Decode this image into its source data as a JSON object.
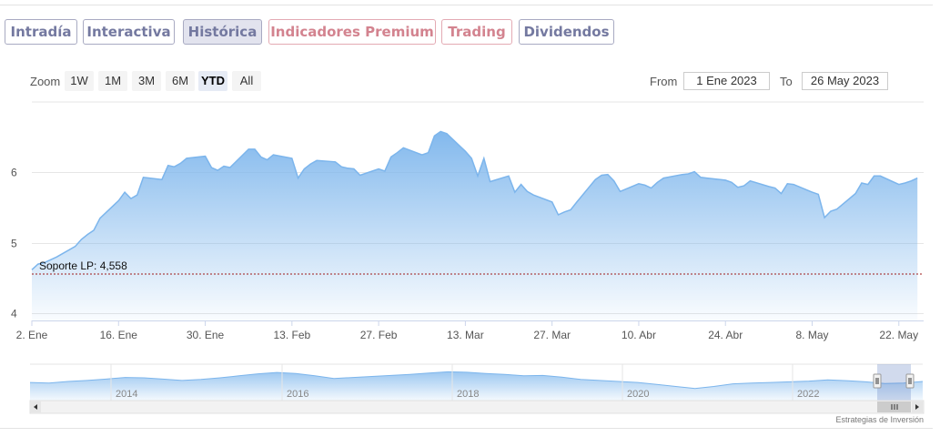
{
  "tabs": [
    {
      "label": "Intradía",
      "style": "blue",
      "active": false
    },
    {
      "label": "Interactiva",
      "style": "blue",
      "active": false
    },
    {
      "label": "Histórica",
      "style": "blue",
      "active": true
    },
    {
      "label": "Indicadores Premium",
      "style": "pink",
      "active": false
    },
    {
      "label": "Trading",
      "style": "pink",
      "active": false
    },
    {
      "label": "Dividendos",
      "style": "blue",
      "active": false
    }
  ],
  "range_selector": {
    "zoom_label": "Zoom",
    "buttons": [
      "1W",
      "1M",
      "3M",
      "6M",
      "YTD",
      "All"
    ],
    "selected": "YTD",
    "from_label": "From",
    "from_value": "1 Ene 2023",
    "to_label": "To",
    "to_value": "26 May 2023"
  },
  "chart_data": {
    "type": "area",
    "x_start": "2023-01-02",
    "x_end": "2023-05-26",
    "x_ticks": [
      {
        "label": "2. Ene",
        "date": "2023-01-02"
      },
      {
        "label": "16. Ene",
        "date": "2023-01-16"
      },
      {
        "label": "30. Ene",
        "date": "2023-01-30"
      },
      {
        "label": "13. Feb",
        "date": "2023-02-13"
      },
      {
        "label": "27. Feb",
        "date": "2023-02-27"
      },
      {
        "label": "13. Mar",
        "date": "2023-03-13"
      },
      {
        "label": "27. Mar",
        "date": "2023-03-27"
      },
      {
        "label": "10. Abr",
        "date": "2023-04-10"
      },
      {
        "label": "24. Abr",
        "date": "2023-04-24"
      },
      {
        "label": "8. May",
        "date": "2023-05-08"
      },
      {
        "label": "22. May",
        "date": "2023-05-22"
      }
    ],
    "y_ticks": [
      4,
      5,
      6
    ],
    "ylim": [
      3.9,
      7.0
    ],
    "series": [
      {
        "values": [
          [
            "2023-01-02",
            4.62
          ],
          [
            "2023-01-03",
            4.7
          ],
          [
            "2023-01-04",
            4.72
          ],
          [
            "2023-01-05",
            4.76
          ],
          [
            "2023-01-06",
            4.8
          ],
          [
            "2023-01-09",
            4.95
          ],
          [
            "2023-01-10",
            5.05
          ],
          [
            "2023-01-11",
            5.12
          ],
          [
            "2023-01-12",
            5.18
          ],
          [
            "2023-01-13",
            5.35
          ],
          [
            "2023-01-16",
            5.6
          ],
          [
            "2023-01-17",
            5.72
          ],
          [
            "2023-01-18",
            5.63
          ],
          [
            "2023-01-19",
            5.68
          ],
          [
            "2023-01-20",
            5.93
          ],
          [
            "2023-01-23",
            5.9
          ],
          [
            "2023-01-24",
            6.1
          ],
          [
            "2023-01-25",
            6.08
          ],
          [
            "2023-01-26",
            6.13
          ],
          [
            "2023-01-27",
            6.2
          ],
          [
            "2023-01-30",
            6.23
          ],
          [
            "2023-01-31",
            6.07
          ],
          [
            "2023-02-01",
            6.03
          ],
          [
            "2023-02-02",
            6.09
          ],
          [
            "2023-02-03",
            6.07
          ],
          [
            "2023-02-06",
            6.33
          ],
          [
            "2023-02-07",
            6.33
          ],
          [
            "2023-02-08",
            6.22
          ],
          [
            "2023-02-09",
            6.18
          ],
          [
            "2023-02-10",
            6.25
          ],
          [
            "2023-02-13",
            6.2
          ],
          [
            "2023-02-14",
            5.92
          ],
          [
            "2023-02-15",
            6.05
          ],
          [
            "2023-02-16",
            6.12
          ],
          [
            "2023-02-17",
            6.17
          ],
          [
            "2023-02-20",
            6.15
          ],
          [
            "2023-02-21",
            6.08
          ],
          [
            "2023-02-22",
            6.06
          ],
          [
            "2023-02-23",
            6.05
          ],
          [
            "2023-02-24",
            5.96
          ],
          [
            "2023-02-27",
            6.05
          ],
          [
            "2023-02-28",
            6.02
          ],
          [
            "2023-03-01",
            6.22
          ],
          [
            "2023-03-02",
            6.28
          ],
          [
            "2023-03-03",
            6.35
          ],
          [
            "2023-03-06",
            6.25
          ],
          [
            "2023-03-07",
            6.28
          ],
          [
            "2023-03-08",
            6.52
          ],
          [
            "2023-03-09",
            6.58
          ],
          [
            "2023-03-10",
            6.55
          ],
          [
            "2023-03-13",
            6.3
          ],
          [
            "2023-03-14",
            6.2
          ],
          [
            "2023-03-15",
            5.95
          ],
          [
            "2023-03-16",
            6.2
          ],
          [
            "2023-03-17",
            5.87
          ],
          [
            "2023-03-20",
            5.95
          ],
          [
            "2023-03-21",
            5.72
          ],
          [
            "2023-03-22",
            5.83
          ],
          [
            "2023-03-23",
            5.73
          ],
          [
            "2023-03-24",
            5.68
          ],
          [
            "2023-03-27",
            5.58
          ],
          [
            "2023-03-28",
            5.4
          ],
          [
            "2023-03-29",
            5.44
          ],
          [
            "2023-03-30",
            5.47
          ],
          [
            "2023-03-31",
            5.58
          ],
          [
            "2023-04-03",
            5.9
          ],
          [
            "2023-04-04",
            5.96
          ],
          [
            "2023-04-05",
            5.97
          ],
          [
            "2023-04-06",
            5.88
          ],
          [
            "2023-04-07",
            5.73
          ],
          [
            "2023-04-10",
            5.84
          ],
          [
            "2023-04-11",
            5.82
          ],
          [
            "2023-04-12",
            5.78
          ],
          [
            "2023-04-13",
            5.86
          ],
          [
            "2023-04-14",
            5.92
          ],
          [
            "2023-04-17",
            5.97
          ],
          [
            "2023-04-18",
            5.98
          ],
          [
            "2023-04-19",
            6.01
          ],
          [
            "2023-04-20",
            5.93
          ],
          [
            "2023-04-21",
            5.92
          ],
          [
            "2023-04-24",
            5.89
          ],
          [
            "2023-04-25",
            5.86
          ],
          [
            "2023-04-26",
            5.79
          ],
          [
            "2023-04-27",
            5.81
          ],
          [
            "2023-04-28",
            5.88
          ],
          [
            "2023-05-01",
            5.8
          ],
          [
            "2023-05-02",
            5.78
          ],
          [
            "2023-05-03",
            5.7
          ],
          [
            "2023-05-04",
            5.84
          ],
          [
            "2023-05-05",
            5.83
          ],
          [
            "2023-05-08",
            5.72
          ],
          [
            "2023-05-09",
            5.69
          ],
          [
            "2023-05-10",
            5.36
          ],
          [
            "2023-05-11",
            5.45
          ],
          [
            "2023-05-12",
            5.48
          ],
          [
            "2023-05-15",
            5.7
          ],
          [
            "2023-05-16",
            5.85
          ],
          [
            "2023-05-17",
            5.83
          ],
          [
            "2023-05-18",
            5.95
          ],
          [
            "2023-05-19",
            5.95
          ],
          [
            "2023-05-22",
            5.83
          ],
          [
            "2023-05-23",
            5.85
          ],
          [
            "2023-05-24",
            5.88
          ],
          [
            "2023-05-25",
            5.92
          ]
        ]
      }
    ],
    "annotations": [
      {
        "label": "Soporte LP: 4,558",
        "y": 4.558,
        "style": "dotted",
        "color": "#9e1a1a"
      }
    ],
    "grid": true,
    "colors": {
      "line": "#7cb5ec",
      "area_top": "#7cb5ec",
      "grid": "#e6e6e6"
    }
  },
  "navigator": {
    "year_labels": [
      "2014",
      "2016",
      "2018",
      "2020",
      "2022"
    ],
    "profile": [
      0.45,
      0.42,
      0.5,
      0.55,
      0.62,
      0.7,
      0.68,
      0.62,
      0.55,
      0.6,
      0.68,
      0.78,
      0.88,
      0.95,
      0.9,
      0.78,
      0.65,
      0.7,
      0.75,
      0.8,
      0.85,
      0.92,
      0.98,
      0.96,
      0.9,
      0.85,
      0.78,
      0.8,
      0.72,
      0.6,
      0.55,
      0.5,
      0.45,
      0.35,
      0.25,
      0.15,
      0.25,
      0.38,
      0.42,
      0.45,
      0.48,
      0.52,
      0.58,
      0.54,
      0.48,
      0.4,
      0.42,
      0.5
    ]
  },
  "credit": "Estrategias de Inversión"
}
